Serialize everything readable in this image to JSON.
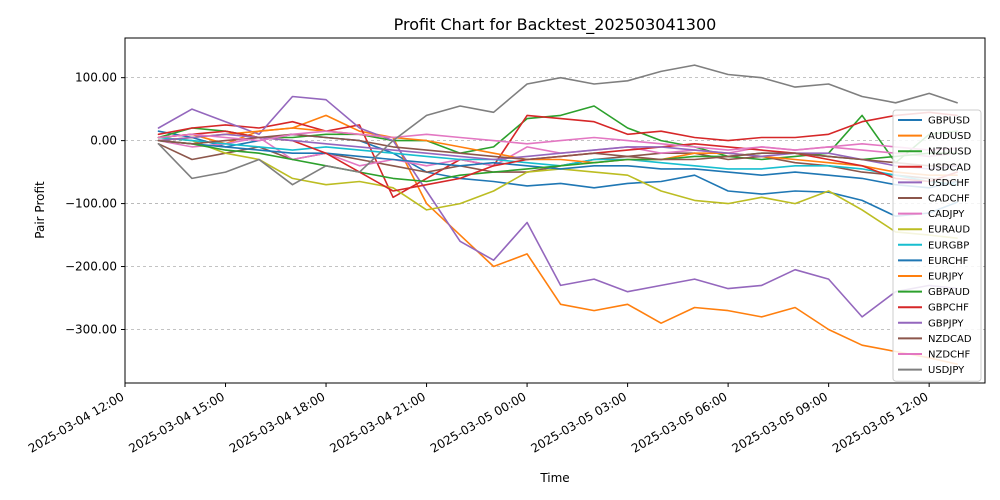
{
  "chart_data": {
    "type": "line",
    "title": "Profit Chart for Backtest_202503041300",
    "xlabel": "Time",
    "ylabel": "Pair Profit",
    "ylim": [
      -385,
      163
    ],
    "xlim": [
      "2025-03-04 12:00",
      "2025-03-05 13:40"
    ],
    "x_ticks": [
      "2025-03-04 12:00",
      "2025-03-04 15:00",
      "2025-03-04 18:00",
      "2025-03-04 21:00",
      "2025-03-05 00:00",
      "2025-03-05 03:00",
      "2025-03-05 06:00",
      "2025-03-05 09:00",
      "2025-03-05 12:00"
    ],
    "y_ticks": [
      100,
      0,
      -100,
      -200,
      -300
    ],
    "y_tick_labels": [
      "100.00",
      "0.00",
      "−100.00",
      "−200.00",
      "−300.00"
    ],
    "grid": "horizontal dashed",
    "legend_position": "right",
    "x": [
      "2025-03-04 13:00",
      "2025-03-04 14:00",
      "2025-03-04 15:00",
      "2025-03-04 16:00",
      "2025-03-04 17:00",
      "2025-03-04 18:00",
      "2025-03-04 19:00",
      "2025-03-04 20:00",
      "2025-03-04 21:00",
      "2025-03-04 22:00",
      "2025-03-04 23:00",
      "2025-03-05 00:00",
      "2025-03-05 01:00",
      "2025-03-05 02:00",
      "2025-03-05 03:00",
      "2025-03-05 04:00",
      "2025-03-05 05:00",
      "2025-03-05 06:00",
      "2025-03-05 07:00",
      "2025-03-05 08:00",
      "2025-03-05 09:00",
      "2025-03-05 10:00",
      "2025-03-05 11:00",
      "2025-03-05 12:00",
      "2025-03-05 12:50"
    ],
    "series": [
      {
        "name": "GBPUSD",
        "color": "#1f77b4",
        "values": [
          15,
          5,
          -10,
          0,
          10,
          5,
          0,
          -20,
          -50,
          -60,
          -65,
          -72,
          -68,
          -75,
          -68,
          -65,
          -55,
          -80,
          -85,
          -80,
          -82,
          -95,
          -120,
          -115,
          -98
        ]
      },
      {
        "name": "AUDUSD",
        "color": "#ff7f0e",
        "values": [
          5,
          10,
          -5,
          15,
          20,
          40,
          15,
          5,
          -100,
          -150,
          -200,
          -180,
          -260,
          -270,
          -260,
          -290,
          -265,
          -270,
          -280,
          -265,
          -300,
          -325,
          -335,
          -345,
          -355
        ]
      },
      {
        "name": "NZDUSD",
        "color": "#2ca02c",
        "values": [
          5,
          20,
          15,
          5,
          5,
          10,
          10,
          0,
          0,
          -20,
          -10,
          35,
          40,
          55,
          20,
          0,
          -10,
          -25,
          -30,
          -25,
          -20,
          40,
          -35,
          10,
          15
        ]
      },
      {
        "name": "USDCAD",
        "color": "#d62728",
        "values": [
          10,
          20,
          25,
          20,
          30,
          15,
          25,
          -90,
          -60,
          -30,
          -40,
          40,
          35,
          30,
          10,
          15,
          5,
          0,
          5,
          5,
          10,
          30,
          40,
          45,
          40
        ]
      },
      {
        "name": "USDCHF",
        "color": "#9467bd",
        "values": [
          20,
          50,
          30,
          10,
          70,
          65,
          20,
          0,
          -80,
          -160,
          -190,
          -130,
          -230,
          -220,
          -240,
          -230,
          -220,
          -235,
          -230,
          -205,
          -220,
          -280,
          -240,
          -230,
          -235
        ]
      },
      {
        "name": "CADCHF",
        "color": "#8c564b",
        "values": [
          -5,
          -30,
          -20,
          -10,
          -30,
          -20,
          -30,
          -40,
          -50,
          -40,
          -50,
          -50,
          -40,
          -30,
          -25,
          -20,
          -20,
          -30,
          -25,
          -35,
          -40,
          -50,
          -55,
          -60,
          -65
        ]
      },
      {
        "name": "CADJPY",
        "color": "#e377c2",
        "values": [
          0,
          -10,
          -5,
          5,
          -30,
          -20,
          -40,
          -30,
          -40,
          -30,
          -40,
          -10,
          -20,
          -15,
          -10,
          -20,
          -15,
          -20,
          -10,
          -15,
          -10,
          -15,
          -20,
          -25,
          -20
        ]
      },
      {
        "name": "EURAUD",
        "color": "#bcbd22",
        "values": [
          5,
          0,
          -20,
          -30,
          -60,
          -70,
          -65,
          -75,
          -110,
          -100,
          -80,
          -50,
          -45,
          -50,
          -55,
          -80,
          -95,
          -100,
          -90,
          -100,
          -80,
          -110,
          -145,
          -150,
          -155
        ]
      },
      {
        "name": "EURGBP",
        "color": "#17becf",
        "values": [
          5,
          0,
          -5,
          -10,
          -15,
          -10,
          -15,
          -20,
          -25,
          -30,
          -30,
          -35,
          -40,
          -30,
          -30,
          -35,
          -40,
          -45,
          -45,
          -40,
          -40,
          -45,
          -55,
          -65,
          -70
        ]
      },
      {
        "name": "EURCHF",
        "color": "#1f77b4",
        "values": [
          0,
          -5,
          -10,
          -15,
          -20,
          -20,
          -25,
          -30,
          -35,
          -40,
          -35,
          -40,
          -45,
          -40,
          -40,
          -45,
          -45,
          -50,
          -55,
          -50,
          -55,
          -60,
          -70,
          -75,
          -65
        ]
      },
      {
        "name": "EURJPY",
        "color": "#ff7f0e",
        "values": [
          0,
          5,
          10,
          15,
          20,
          15,
          10,
          5,
          0,
          -10,
          -20,
          -30,
          -30,
          -35,
          -30,
          -30,
          -20,
          -20,
          -25,
          -30,
          -35,
          -40,
          -50,
          -55,
          -55
        ]
      },
      {
        "name": "GBPAUD",
        "color": "#2ca02c",
        "values": [
          0,
          -5,
          -15,
          -20,
          -30,
          -40,
          -50,
          -60,
          -65,
          -55,
          -50,
          -45,
          -40,
          -35,
          -30,
          -30,
          -25,
          -25,
          -20,
          -20,
          -25,
          -30,
          -25,
          -20,
          -20
        ]
      },
      {
        "name": "GBPCHF",
        "color": "#d62728",
        "values": [
          5,
          10,
          15,
          5,
          0,
          -20,
          -50,
          -80,
          -70,
          -60,
          -40,
          -30,
          -25,
          -20,
          -15,
          -10,
          -5,
          -10,
          -15,
          -20,
          -30,
          -40,
          -60,
          -65,
          -50
        ]
      },
      {
        "name": "GBPJPY",
        "color": "#9467bd",
        "values": [
          0,
          5,
          10,
          5,
          0,
          -5,
          -10,
          -15,
          -20,
          -25,
          -30,
          -25,
          -20,
          -15,
          -10,
          -10,
          -15,
          -20,
          -25,
          -20,
          -20,
          -30,
          -40,
          -45,
          -40
        ]
      },
      {
        "name": "NZDCAD",
        "color": "#8c564b",
        "values": [
          0,
          -5,
          0,
          5,
          10,
          5,
          0,
          -10,
          -15,
          -20,
          -25,
          -30,
          -25,
          -20,
          -25,
          -30,
          -30,
          -25,
          -20,
          -20,
          -25,
          -30,
          -35,
          -40,
          -38
        ]
      },
      {
        "name": "NZDCHF",
        "color": "#e377c2",
        "values": [
          5,
          10,
          5,
          0,
          10,
          15,
          10,
          5,
          10,
          5,
          0,
          -5,
          0,
          5,
          0,
          -5,
          -10,
          -15,
          -10,
          -15,
          -10,
          -5,
          -10,
          -15,
          -12
        ]
      },
      {
        "name": "USDJPY",
        "color": "#7f7f7f",
        "values": [
          -5,
          -60,
          -50,
          -30,
          -70,
          -40,
          -50,
          0,
          40,
          55,
          45,
          90,
          100,
          90,
          95,
          110,
          120,
          105,
          100,
          85,
          90,
          70,
          60,
          75,
          60
        ]
      }
    ]
  }
}
